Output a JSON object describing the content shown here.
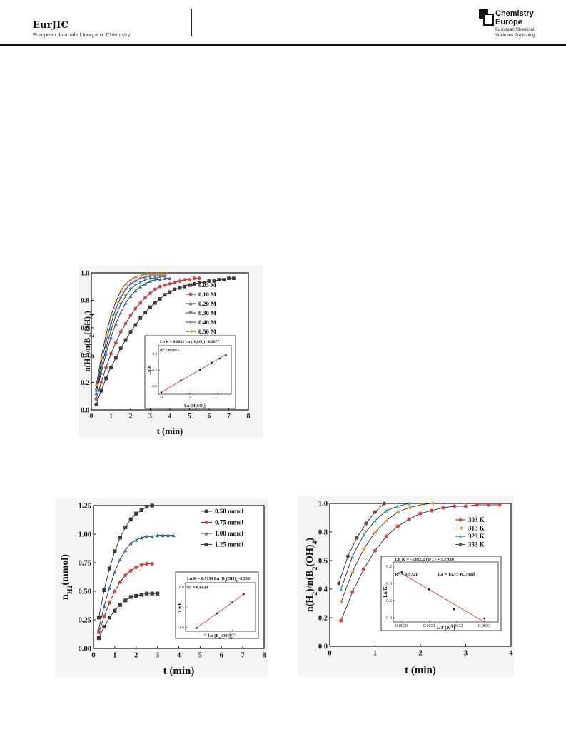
{
  "header": {
    "journal_abbr": "EurJIC",
    "journal_full": "European Journal of Inorganic Chemistry",
    "publisher_name_1": "Chemistry",
    "publisher_name_2": "Europe",
    "publisher_sub_1": "European Chemical",
    "publisher_sub_2": "Societies Publishing"
  },
  "chart_data": [
    {
      "type": "line",
      "id": "chart-a",
      "xlabel": "t (min)",
      "ylabel": "n(H2)/n(B2(OH)4)",
      "xlim": [
        0,
        8
      ],
      "ylim": [
        0,
        1.0
      ],
      "xticks": [
        "0",
        "1",
        "2",
        "3",
        "4",
        "5",
        "6",
        "7",
        "8"
      ],
      "yticks": [
        "0.0",
        "0.2",
        "0.4",
        "0.6",
        "0.8",
        "1.0"
      ],
      "legend_position": "top-right",
      "series": [
        {
          "name": "0.05 M",
          "color": "#3a3a3a",
          "marker": "square",
          "x": [
            0.25,
            0.5,
            0.75,
            1,
            1.25,
            1.5,
            1.75,
            2,
            2.25,
            2.5,
            2.75,
            3,
            3.25,
            3.5,
            3.75,
            4,
            4.25,
            4.5,
            4.75,
            5,
            5.25,
            5.5,
            5.75,
            6,
            6.25,
            6.5,
            6.75,
            7,
            7.25
          ],
          "y": [
            0.04,
            0.14,
            0.23,
            0.31,
            0.38,
            0.45,
            0.51,
            0.57,
            0.62,
            0.67,
            0.71,
            0.75,
            0.78,
            0.81,
            0.84,
            0.86,
            0.88,
            0.89,
            0.9,
            0.91,
            0.92,
            0.93,
            0.93,
            0.94,
            0.94,
            0.95,
            0.95,
            0.96,
            0.96
          ]
        },
        {
          "name": "0.10 M",
          "color": "#e0403c",
          "marker": "circle",
          "x": [
            0.25,
            0.5,
            0.75,
            1,
            1.25,
            1.5,
            1.75,
            2,
            2.25,
            2.5,
            2.75,
            3,
            3.25,
            3.5,
            3.75,
            4,
            4.25,
            4.5,
            4.75,
            5,
            5.25,
            5.5
          ],
          "y": [
            0.08,
            0.2,
            0.31,
            0.41,
            0.49,
            0.57,
            0.63,
            0.69,
            0.74,
            0.78,
            0.82,
            0.85,
            0.88,
            0.9,
            0.91,
            0.92,
            0.93,
            0.94,
            0.95,
            0.95,
            0.96,
            0.96
          ]
        },
        {
          "name": "0.20 M",
          "color": "#2a6fc9",
          "marker": "triangle-up",
          "x": [
            0.25,
            0.5,
            0.75,
            1,
            1.25,
            1.5,
            1.75,
            2,
            2.25,
            2.5,
            2.75,
            3,
            3.25,
            3.5,
            3.75,
            4
          ],
          "y": [
            0.12,
            0.27,
            0.41,
            0.53,
            0.63,
            0.71,
            0.78,
            0.83,
            0.87,
            0.9,
            0.92,
            0.94,
            0.95,
            0.95,
            0.96,
            0.96
          ]
        },
        {
          "name": "0.30 M",
          "color": "#17a07c",
          "marker": "triangle-down",
          "x": [
            0.25,
            0.5,
            0.75,
            1,
            1.25,
            1.5,
            1.75,
            2,
            2.25,
            2.5,
            2.75,
            3,
            3.25,
            3.5,
            3.75
          ],
          "y": [
            0.13,
            0.3,
            0.45,
            0.58,
            0.69,
            0.77,
            0.83,
            0.88,
            0.91,
            0.93,
            0.95,
            0.96,
            0.96,
            0.97,
            0.97
          ]
        },
        {
          "name": "0.40 M",
          "color": "#b05ad8",
          "marker": "diamond",
          "x": [
            0.25,
            0.5,
            0.75,
            1,
            1.25,
            1.5,
            1.75,
            2,
            2.25,
            2.5,
            2.75,
            3,
            3.25,
            3.5,
            3.75
          ],
          "y": [
            0.15,
            0.34,
            0.5,
            0.63,
            0.74,
            0.82,
            0.88,
            0.92,
            0.94,
            0.96,
            0.97,
            0.98,
            0.98,
            0.98,
            0.98
          ]
        },
        {
          "name": "0.50 M",
          "color": "#cfa215",
          "marker": "triangle-left",
          "x": [
            0.25,
            0.5,
            0.75,
            1,
            1.25,
            1.5,
            1.75,
            2,
            2.25,
            2.5,
            2.75,
            3,
            3.25,
            3.5,
            3.75
          ],
          "y": [
            0.18,
            0.38,
            0.55,
            0.69,
            0.79,
            0.87,
            0.92,
            0.95,
            0.97,
            0.98,
            0.99,
            0.99,
            0.99,
            0.99,
            0.99
          ]
        }
      ],
      "inset": {
        "xlabel": "Ln (H2SO4)",
        "ylabel": "Ln K",
        "equation": "Ln K = 0.2033 Ln (H2SO4) - 0.2677",
        "r2": "R2 = 0.9875",
        "xlim": [
          -3.1,
          -0.5
        ],
        "ylim": [
          -0.9,
          -0.3
        ],
        "xticks": [
          "-3",
          "-2",
          "-1"
        ],
        "yticks": [
          "-0.8",
          "-0.6",
          "-0.4"
        ],
        "x": [
          -3.0,
          -2.3,
          -1.61,
          -1.2,
          -0.92,
          -0.69
        ],
        "y": [
          -0.88,
          -0.73,
          -0.6,
          -0.51,
          -0.46,
          -0.42
        ],
        "fit": {
          "slope": 0.2033,
          "intercept": -0.2677
        }
      }
    },
    {
      "type": "line",
      "id": "chart-b",
      "xlabel": "t (min)",
      "ylabel": "nH2(mmol)",
      "xlim": [
        0,
        8
      ],
      "ylim": [
        0,
        1.25
      ],
      "xticks": [
        "0",
        "1",
        "2",
        "3",
        "4",
        "5",
        "6",
        "7",
        "8"
      ],
      "yticks": [
        "0.00",
        "0.25",
        "0.50",
        "0.75",
        "1.00",
        "1.25"
      ],
      "legend_position": "top-right",
      "series": [
        {
          "name": "0.50 mmol",
          "color": "#3a3a3a",
          "marker": "square",
          "x": [
            0.25,
            0.5,
            0.75,
            1,
            1.25,
            1.5,
            1.75,
            2,
            2.25,
            2.5,
            2.75,
            3
          ],
          "y": [
            0.09,
            0.19,
            0.27,
            0.33,
            0.38,
            0.42,
            0.45,
            0.46,
            0.47,
            0.48,
            0.48,
            0.48
          ]
        },
        {
          "name": "0.75 mmol",
          "color": "#e0403c",
          "marker": "circle",
          "x": [
            0.25,
            0.5,
            0.75,
            1,
            1.25,
            1.5,
            1.75,
            2,
            2.25,
            2.5,
            2.75
          ],
          "y": [
            0.14,
            0.28,
            0.4,
            0.5,
            0.58,
            0.64,
            0.68,
            0.71,
            0.73,
            0.74,
            0.74
          ]
        },
        {
          "name": "1.00 mmol",
          "color": "#2a6fc9",
          "marker": "triangle-up",
          "x": [
            0.25,
            0.5,
            0.75,
            1,
            1.25,
            1.5,
            1.75,
            2,
            2.25,
            2.5,
            2.75,
            3,
            3.25,
            3.5,
            3.75
          ],
          "y": [
            0.17,
            0.37,
            0.53,
            0.67,
            0.78,
            0.86,
            0.92,
            0.95,
            0.97,
            0.98,
            0.98,
            0.99,
            0.99,
            0.99,
            0.99
          ]
        },
        {
          "name": "1.25 mmol",
          "color": "#3a3a3a",
          "marker": "square",
          "x": [
            0.25,
            0.5,
            0.75,
            1,
            1.25,
            1.5,
            1.75,
            2,
            2.25,
            2.5,
            2.75
          ],
          "y": [
            0.27,
            0.51,
            0.7,
            0.85,
            0.97,
            1.06,
            1.13,
            1.18,
            1.21,
            1.24,
            1.25
          ]
        }
      ],
      "inset": {
        "xlabel": "Ln (B2(OH)4)",
        "ylabel": "Ln K",
        "equation": "Ln K = 0.9154 Ln (B2(OH)4)-0.3881",
        "r2": "R2 = 0.9934",
        "xlim": [
          -0.9,
          0.45
        ],
        "ylim": [
          -1.1,
          0.1
        ],
        "xticks": [
          "-0.5",
          "0.0"
        ],
        "yticks": [
          "-1.0",
          "-0.5",
          "0.0"
        ],
        "x": [
          -0.69,
          -0.29,
          0.0,
          0.22
        ],
        "y": [
          -1.02,
          -0.66,
          -0.39,
          -0.18
        ],
        "fit": {
          "slope": 0.9154,
          "intercept": -0.3881
        }
      }
    },
    {
      "type": "line",
      "id": "chart-c",
      "xlabel": "t (min)",
      "ylabel": "n(H2)/n(B2(OH)4)",
      "xlim": [
        0,
        4
      ],
      "ylim": [
        0,
        1.0
      ],
      "xticks": [
        "0",
        "1",
        "2",
        "3",
        "4"
      ],
      "yticks": [
        "0.0",
        "0.2",
        "0.4",
        "0.6",
        "0.8",
        "1.0"
      ],
      "legend_position": "top-right",
      "series": [
        {
          "name": "303 K",
          "color": "#e0403c",
          "marker": "circle",
          "x": [
            0.25,
            0.5,
            0.75,
            1,
            1.25,
            1.5,
            1.75,
            2,
            2.25,
            2.5,
            2.75,
            3,
            3.25,
            3.5,
            3.75
          ],
          "y": [
            0.18,
            0.38,
            0.54,
            0.67,
            0.77,
            0.84,
            0.89,
            0.93,
            0.95,
            0.97,
            0.98,
            0.98,
            0.99,
            0.99,
            0.99
          ]
        },
        {
          "name": "313 K",
          "color": "#cfa215",
          "marker": "triangle-left",
          "x": [
            0.25,
            0.5,
            0.75,
            1,
            1.25,
            1.5,
            1.75,
            2,
            2.25
          ],
          "y": [
            0.31,
            0.52,
            0.68,
            0.8,
            0.88,
            0.94,
            0.97,
            0.99,
            1.0
          ]
        },
        {
          "name": "323 K",
          "color": "#22c3d6",
          "marker": "triangle-up",
          "x": [
            0.25,
            0.5,
            0.75,
            1,
            1.25,
            1.5,
            1.75
          ],
          "y": [
            0.4,
            0.63,
            0.78,
            0.88,
            0.95,
            0.98,
            1.0
          ]
        },
        {
          "name": "333 K",
          "color": "#7a4438",
          "marker": "circle",
          "x": [
            0.2,
            0.4,
            0.6,
            0.8,
            1,
            1.2
          ],
          "y": [
            0.44,
            0.63,
            0.76,
            0.86,
            0.94,
            1.0
          ]
        }
      ],
      "inset": {
        "xlabel": "1/T (K-1)",
        "ylabel": "Ln K",
        "equation": "Ln K = -1892.2 (1/T) + 5.7938",
        "r2": "R2 = 0.9721",
        "ea": "Ea = 15.75 KJ/mol",
        "xlim": [
          0.00297,
          0.00335
        ],
        "ylim": [
          -0.45,
          0.25
        ],
        "xticks": [
          "0.0030",
          "0.0031",
          "0.0032",
          "0.0033"
        ],
        "yticks": [
          "-0.4",
          "-0.2",
          "0.0",
          "0.2"
        ],
        "x": [
          0.003,
          0.0031,
          0.00319,
          0.0033
        ],
        "y": [
          0.13,
          -0.07,
          -0.3,
          -0.41
        ],
        "fit": {
          "slope": -1892.2,
          "intercept": 5.7938
        }
      }
    }
  ]
}
